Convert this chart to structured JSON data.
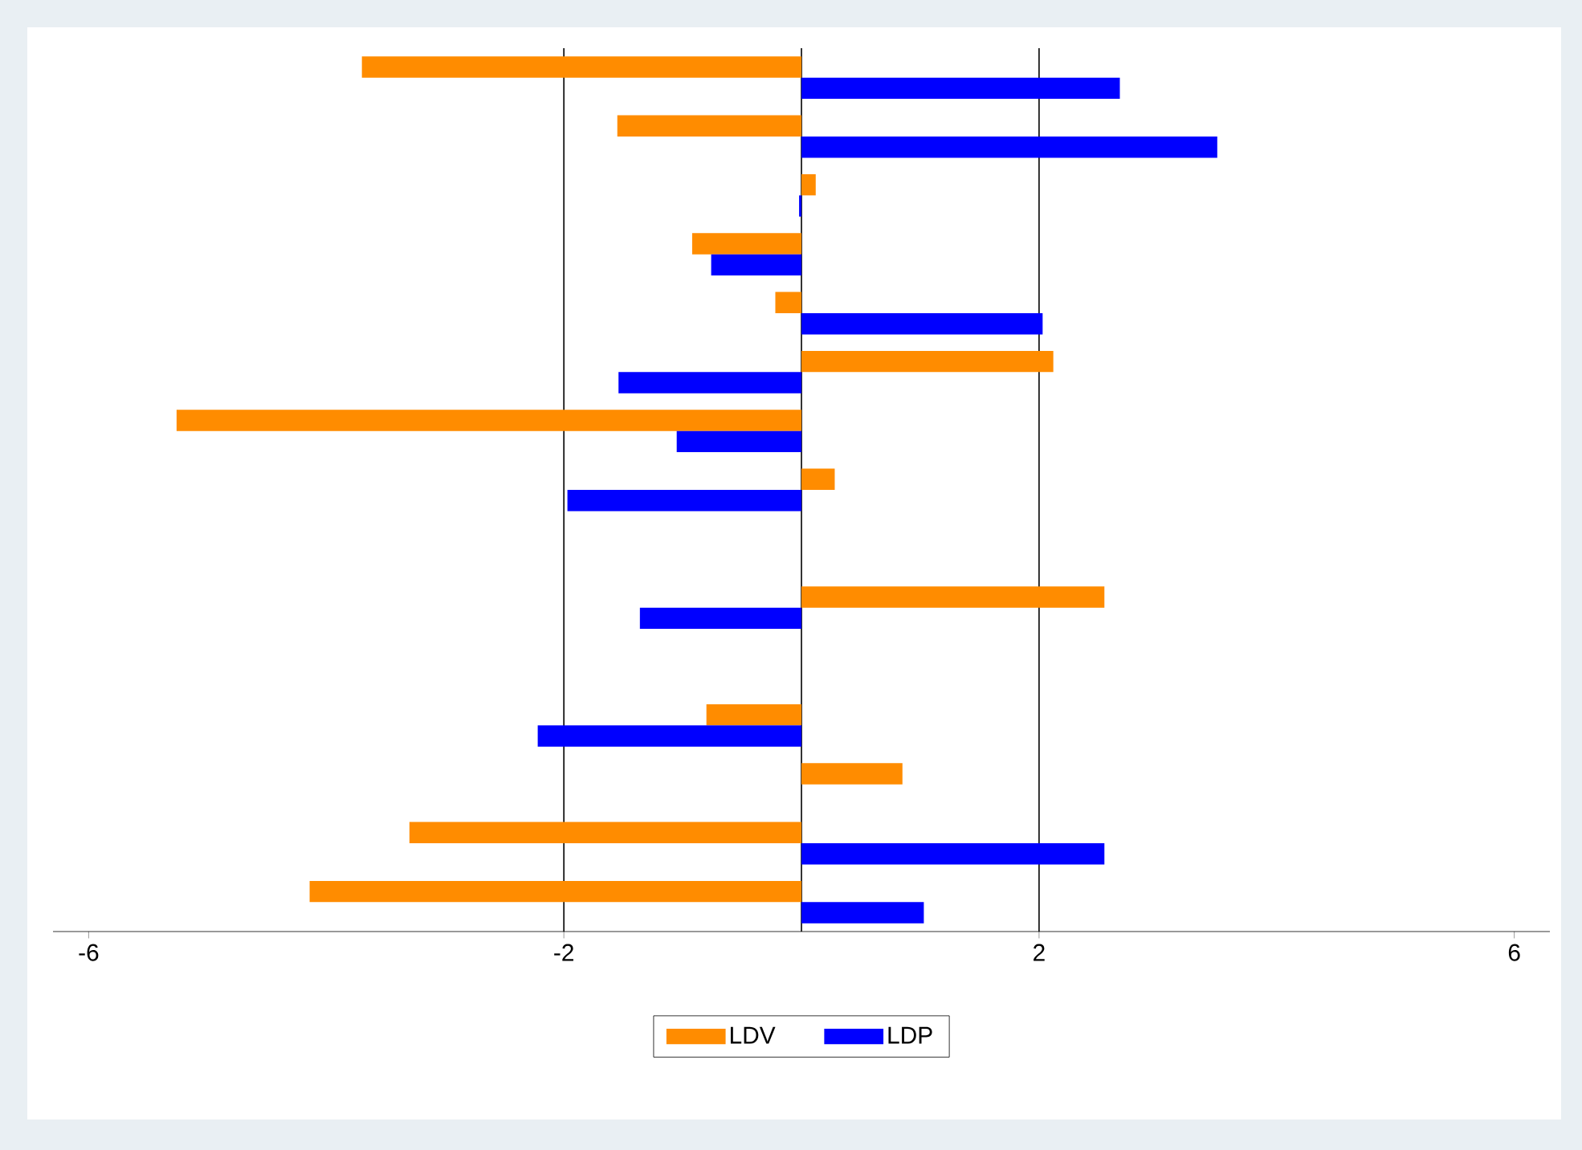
{
  "chart_data": {
    "type": "bar",
    "orientation": "horizontal",
    "categories": [
      null,
      null,
      null,
      null,
      null,
      null,
      null,
      null,
      null,
      null,
      null,
      null,
      null,
      null,
      null
    ],
    "series": [
      {
        "name": "LDV",
        "color": "#ff8c00",
        "values": [
          -3.7,
          -1.55,
          0.12,
          -0.92,
          -0.22,
          2.12,
          -5.26,
          0.28,
          null,
          2.55,
          null,
          -0.8,
          0.85,
          -3.3,
          -4.14
        ]
      },
      {
        "name": "LDP",
        "color": "#0000ff",
        "values": [
          2.68,
          3.5,
          -0.02,
          -0.76,
          2.03,
          -1.54,
          -1.05,
          -1.97,
          null,
          -1.36,
          null,
          -2.22,
          null,
          2.55,
          1.03
        ]
      }
    ],
    "xlim": [
      -6.3,
      6.3
    ],
    "xticks": [
      -6,
      -2,
      2,
      6
    ],
    "ref_lines": [
      {
        "axis": "x",
        "value": -2
      },
      {
        "axis": "x",
        "value": 0
      },
      {
        "axis": "x",
        "value": 2
      }
    ],
    "legend": "bottom"
  }
}
